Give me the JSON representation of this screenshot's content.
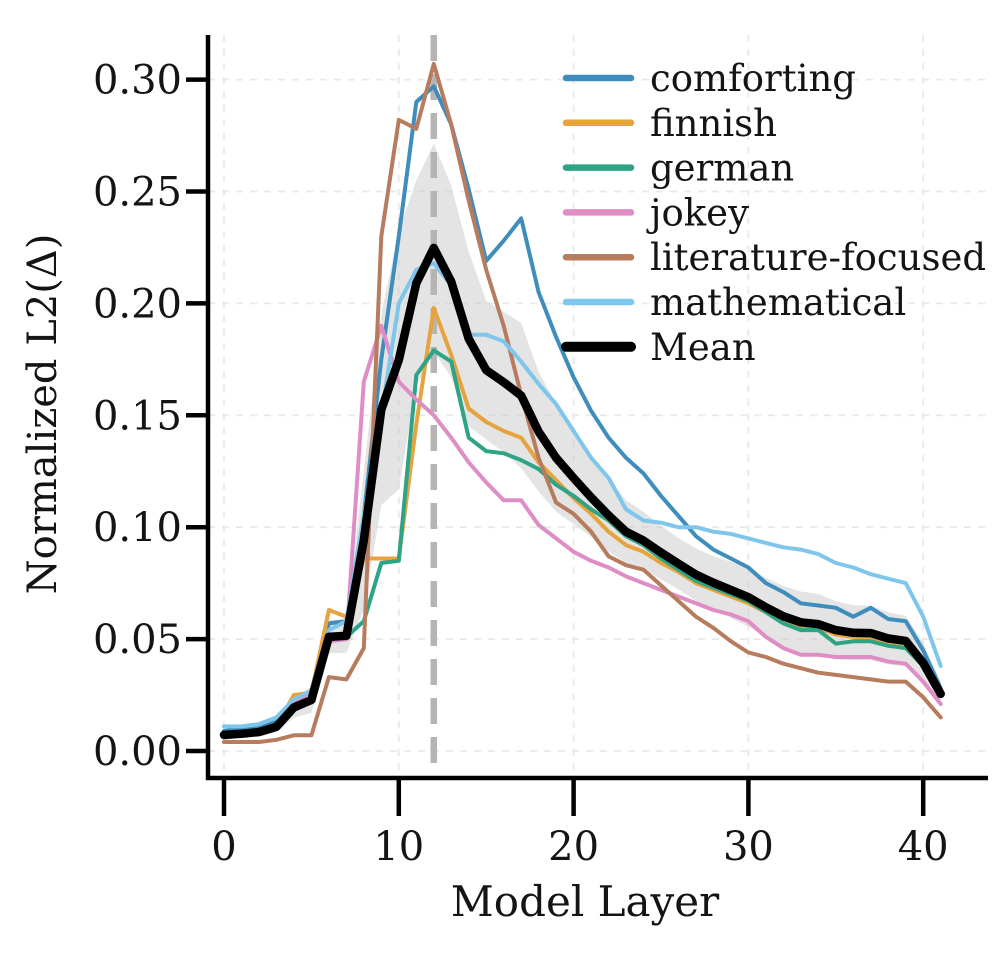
{
  "figure": {
    "background": "#ffffff",
    "text_color": "#141414",
    "spine_color": "#000000",
    "grid_color": "#e9e9e9"
  },
  "chart_data": {
    "type": "line",
    "title": "",
    "xlabel": "Model Layer",
    "ylabel": "Normalized L2(Δ)",
    "xlim": [
      -0.95,
      43.8
    ],
    "ylim": [
      -0.012,
      0.32
    ],
    "grid": true,
    "legend_position": "upper right",
    "xticks": {
      "values": [
        0,
        10,
        20,
        30,
        40
      ],
      "labels": [
        "0",
        "10",
        "20",
        "30",
        "40"
      ]
    },
    "yticks": {
      "values": [
        0.0,
        0.05,
        0.1,
        0.15,
        0.2,
        0.25,
        0.3
      ],
      "labels": [
        "0.00",
        "0.05",
        "0.10",
        "0.15",
        "0.20",
        "0.25",
        "0.30"
      ]
    },
    "vline": {
      "x": 12,
      "style": "dashed",
      "color": "#b5b5b5",
      "width": 6.5
    },
    "band": {
      "definition": "mean ± 0.8 × std across the six style series",
      "k": 0.8,
      "color": "#c9c9c9",
      "opacity": 0.5
    },
    "x": [
      0,
      1,
      2,
      3,
      4,
      5,
      6,
      7,
      8,
      9,
      10,
      11,
      12,
      13,
      14,
      15,
      16,
      17,
      18,
      19,
      20,
      21,
      22,
      23,
      24,
      25,
      26,
      27,
      28,
      29,
      30,
      31,
      32,
      33,
      34,
      35,
      36,
      37,
      38,
      39,
      40,
      41
    ],
    "series": [
      {
        "name": "comforting",
        "color": "#3e8dbd",
        "line_width": 4,
        "values": [
          0.009,
          0.01,
          0.011,
          0.013,
          0.022,
          0.027,
          0.057,
          0.058,
          0.105,
          0.175,
          0.23,
          0.29,
          0.297,
          0.28,
          0.251,
          0.219,
          0.228,
          0.238,
          0.205,
          0.185,
          0.167,
          0.152,
          0.14,
          0.131,
          0.124,
          0.114,
          0.105,
          0.096,
          0.09,
          0.086,
          0.082,
          0.075,
          0.071,
          0.066,
          0.065,
          0.064,
          0.06,
          0.064,
          0.059,
          0.058,
          0.045,
          0.028
        ]
      },
      {
        "name": "finnish",
        "color": "#e6a33e",
        "line_width": 4,
        "values": [
          0.007,
          0.007,
          0.008,
          0.011,
          0.025,
          0.026,
          0.063,
          0.06,
          0.086,
          0.086,
          0.086,
          0.146,
          0.198,
          0.177,
          0.153,
          0.147,
          0.143,
          0.14,
          0.129,
          0.121,
          0.113,
          0.106,
          0.098,
          0.092,
          0.089,
          0.084,
          0.08,
          0.075,
          0.072,
          0.069,
          0.066,
          0.062,
          0.057,
          0.055,
          0.055,
          0.052,
          0.051,
          0.05,
          0.048,
          0.046,
          0.038,
          0.026
        ]
      },
      {
        "name": "german",
        "color": "#2fa385",
        "line_width": 4,
        "values": [
          0.006,
          0.007,
          0.008,
          0.01,
          0.019,
          0.023,
          0.05,
          0.051,
          0.058,
          0.084,
          0.085,
          0.168,
          0.179,
          0.174,
          0.14,
          0.134,
          0.133,
          0.13,
          0.126,
          0.119,
          0.114,
          0.108,
          0.103,
          0.096,
          0.092,
          0.086,
          0.081,
          0.076,
          0.073,
          0.07,
          0.067,
          0.062,
          0.057,
          0.054,
          0.054,
          0.048,
          0.049,
          0.049,
          0.047,
          0.046,
          0.038,
          0.025
        ]
      },
      {
        "name": "jokey",
        "color": "#de8dc5",
        "line_width": 4,
        "values": [
          0.006,
          0.007,
          0.008,
          0.011,
          0.021,
          0.027,
          0.049,
          0.05,
          0.165,
          0.19,
          0.165,
          0.157,
          0.15,
          0.14,
          0.129,
          0.12,
          0.112,
          0.112,
          0.101,
          0.095,
          0.089,
          0.085,
          0.082,
          0.078,
          0.075,
          0.072,
          0.069,
          0.066,
          0.063,
          0.061,
          0.058,
          0.051,
          0.046,
          0.043,
          0.043,
          0.042,
          0.042,
          0.042,
          0.04,
          0.039,
          0.031,
          0.021
        ]
      },
      {
        "name": "literature-focused",
        "color": "#b77c5e",
        "line_width": 4,
        "values": [
          0.004,
          0.004,
          0.004,
          0.005,
          0.007,
          0.007,
          0.033,
          0.032,
          0.046,
          0.23,
          0.282,
          0.278,
          0.307,
          0.28,
          0.246,
          0.215,
          0.19,
          0.159,
          0.131,
          0.111,
          0.106,
          0.098,
          0.087,
          0.083,
          0.081,
          0.074,
          0.067,
          0.06,
          0.055,
          0.049,
          0.044,
          0.042,
          0.039,
          0.037,
          0.035,
          0.034,
          0.033,
          0.032,
          0.031,
          0.031,
          0.024,
          0.015
        ]
      },
      {
        "name": "mathematical",
        "color": "#7fc6ec",
        "line_width": 4,
        "values": [
          0.011,
          0.011,
          0.012,
          0.015,
          0.023,
          0.027,
          0.054,
          0.058,
          0.105,
          0.15,
          0.2,
          0.215,
          0.218,
          0.208,
          0.186,
          0.186,
          0.183,
          0.174,
          0.164,
          0.155,
          0.143,
          0.131,
          0.122,
          0.108,
          0.103,
          0.102,
          0.1,
          0.1,
          0.098,
          0.097,
          0.095,
          0.093,
          0.091,
          0.09,
          0.088,
          0.084,
          0.082,
          0.079,
          0.077,
          0.075,
          0.06,
          0.038
        ]
      },
      {
        "name": "Mean",
        "color": "#000000",
        "line_width": 8.5,
        "values": [
          0.0072,
          0.0077,
          0.0085,
          0.0108,
          0.0195,
          0.0228,
          0.051,
          0.0515,
          0.0942,
          0.1525,
          0.1747,
          0.209,
          0.2248,
          0.2098,
          0.1842,
          0.1702,
          0.1648,
          0.1588,
          0.1427,
          0.131,
          0.122,
          0.1133,
          0.1053,
          0.098,
          0.094,
          0.0887,
          0.0837,
          0.0788,
          0.0752,
          0.072,
          0.0687,
          0.0642,
          0.0602,
          0.0575,
          0.0567,
          0.054,
          0.0528,
          0.0527,
          0.0503,
          0.0492,
          0.0393,
          0.0255
        ]
      }
    ]
  }
}
